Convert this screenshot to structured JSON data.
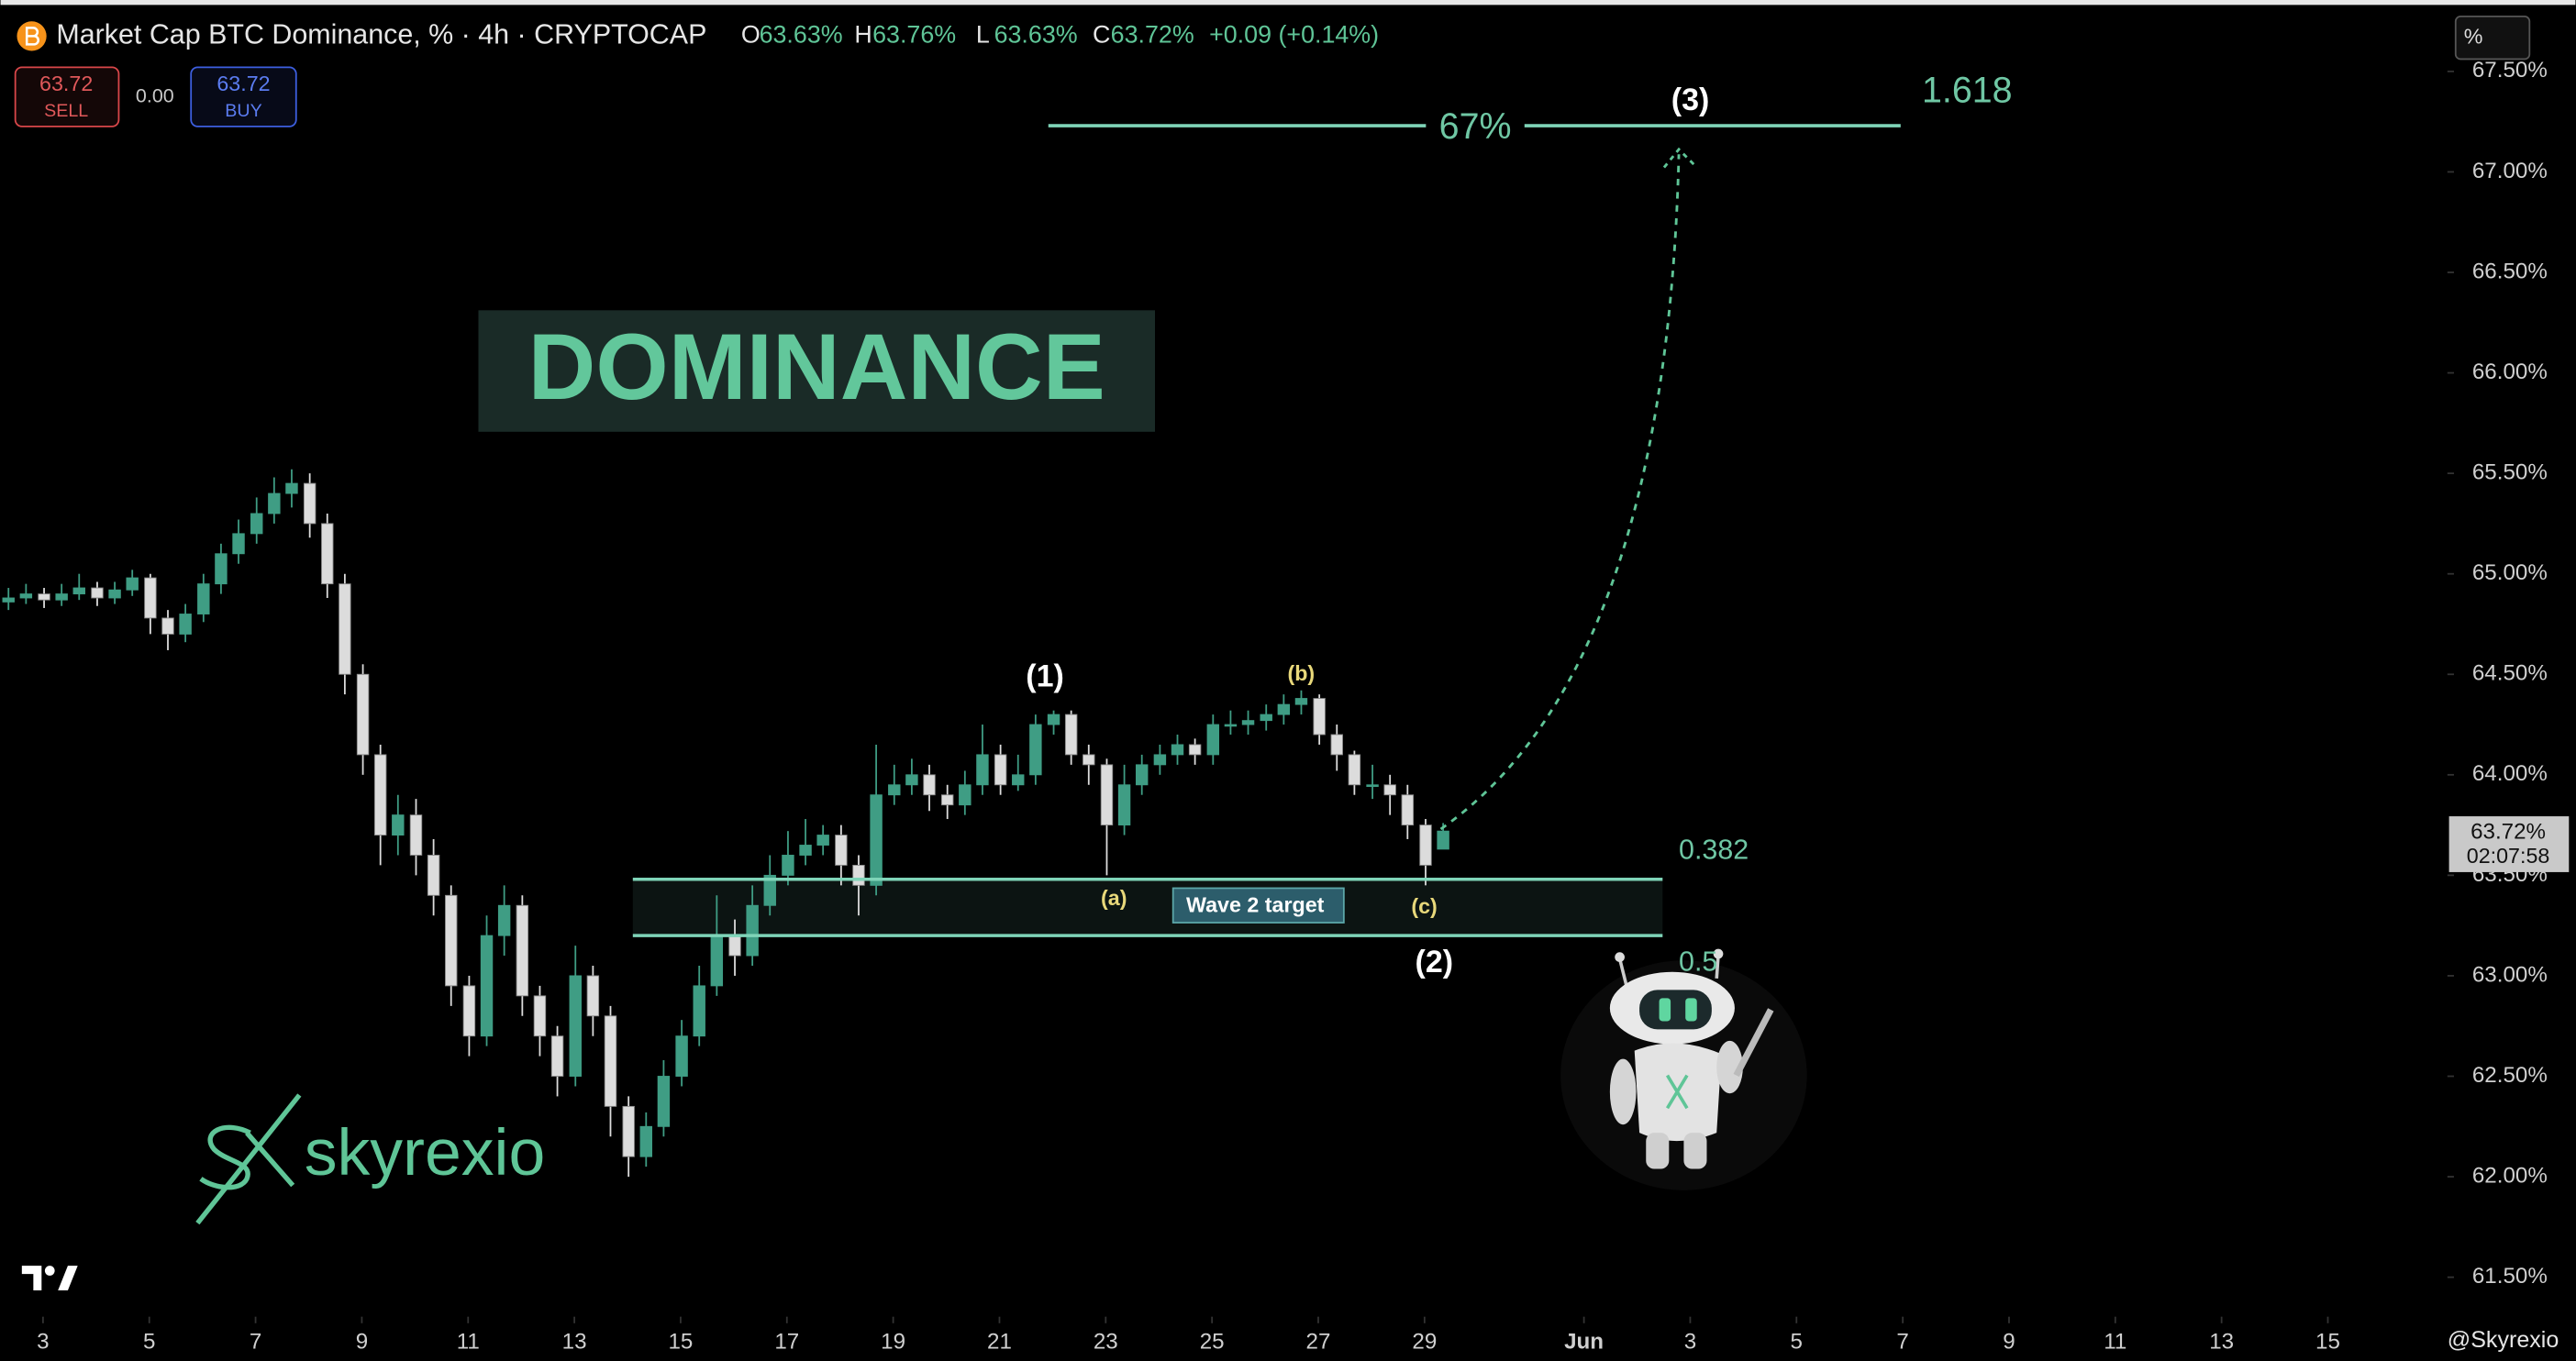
{
  "chart_data": {
    "type": "candlestick",
    "title": "Market Cap BTC Dominance, % · 4h · CRYPTOCAP",
    "ohlc_header": [
      {
        "key": "O",
        "value": "63.63%"
      },
      {
        "key": "H",
        "value": "63.76%"
      },
      {
        "key": "L",
        "value": "63.63%"
      },
      {
        "key": "C",
        "value": "63.72%"
      }
    ],
    "change": "+0.09 (+0.14%)",
    "x": [
      2.35,
      2.68,
      3.02,
      3.35,
      3.68,
      4.02,
      4.35,
      4.68,
      5.02,
      5.35,
      5.68,
      6.02,
      6.35,
      6.68,
      7.02,
      7.35,
      7.68,
      8.02,
      8.35,
      8.68,
      9.02,
      9.35,
      9.68,
      10.02,
      10.35,
      10.68,
      11.02,
      11.35,
      11.68,
      12.02,
      12.35,
      12.68,
      13.02,
      13.35,
      13.68,
      14.02,
      14.35,
      14.68,
      15.02,
      15.35,
      15.68,
      16.02,
      16.35,
      16.68,
      17.02,
      17.35,
      17.68,
      18.02,
      18.35,
      18.68,
      19.02,
      19.35,
      19.68,
      20.02,
      20.35,
      20.68,
      21.02,
      21.35,
      21.68,
      22.02,
      22.35,
      22.68,
      23.02,
      23.35,
      23.68,
      24.02,
      24.35,
      24.68,
      25.02,
      25.35,
      25.68,
      26.02,
      26.35,
      26.68,
      27.02,
      27.35,
      27.68,
      28.02,
      28.35,
      28.68,
      29.02,
      29.35
    ],
    "open": [
      64.86,
      64.88,
      64.9,
      64.87,
      64.9,
      64.93,
      64.88,
      64.92,
      64.98,
      64.78,
      64.7,
      64.8,
      64.95,
      65.1,
      65.2,
      65.3,
      65.4,
      65.45,
      65.25,
      64.95,
      64.5,
      64.1,
      63.7,
      63.8,
      63.6,
      63.4,
      62.95,
      62.7,
      63.2,
      63.35,
      62.9,
      62.7,
      62.5,
      63.0,
      62.8,
      62.35,
      62.1,
      62.25,
      62.5,
      62.7,
      62.95,
      63.2,
      63.1,
      63.35,
      63.5,
      63.6,
      63.65,
      63.7,
      63.55,
      63.45,
      63.9,
      63.95,
      64.0,
      63.9,
      63.85,
      63.95,
      64.1,
      63.95,
      64.0,
      64.25,
      64.3,
      64.1,
      64.05,
      63.75,
      63.95,
      64.05,
      64.1,
      64.15,
      64.1,
      64.25,
      64.25,
      64.27,
      64.3,
      64.35,
      64.38,
      64.2,
      64.1,
      63.95,
      63.95,
      63.9,
      63.75,
      63.63
    ],
    "high": [
      64.93,
      64.95,
      64.93,
      64.95,
      65.0,
      64.96,
      64.96,
      65.02,
      65.0,
      64.82,
      64.85,
      65.0,
      65.15,
      65.27,
      65.38,
      65.48,
      65.52,
      65.5,
      65.3,
      65.0,
      64.55,
      64.15,
      63.9,
      63.88,
      63.68,
      63.45,
      63.0,
      63.3,
      63.45,
      63.4,
      62.95,
      62.75,
      63.15,
      63.05,
      62.85,
      62.4,
      62.32,
      62.58,
      62.78,
      63.05,
      63.4,
      63.28,
      63.45,
      63.6,
      63.72,
      63.78,
      63.75,
      63.75,
      63.6,
      64.15,
      64.05,
      64.08,
      64.05,
      63.95,
      64.02,
      64.25,
      64.15,
      64.1,
      64.3,
      64.32,
      64.32,
      64.15,
      64.08,
      64.05,
      64.1,
      64.15,
      64.2,
      64.18,
      64.3,
      64.32,
      64.32,
      64.35,
      64.4,
      64.42,
      64.4,
      64.25,
      64.12,
      64.05,
      64.0,
      63.95,
      63.78,
      63.76
    ],
    "low": [
      64.82,
      64.85,
      64.83,
      64.84,
      64.87,
      64.84,
      64.85,
      64.89,
      64.7,
      64.62,
      64.66,
      64.76,
      64.9,
      65.05,
      65.15,
      65.25,
      65.33,
      65.18,
      64.88,
      64.4,
      64.0,
      63.55,
      63.6,
      63.5,
      63.3,
      62.85,
      62.6,
      62.65,
      63.1,
      62.8,
      62.6,
      62.4,
      62.45,
      62.7,
      62.2,
      62.0,
      62.05,
      62.2,
      62.45,
      62.65,
      62.9,
      63.0,
      63.05,
      63.3,
      63.45,
      63.55,
      63.6,
      63.45,
      63.3,
      63.4,
      63.85,
      63.9,
      63.82,
      63.78,
      63.8,
      63.9,
      63.9,
      63.92,
      63.95,
      64.2,
      64.05,
      63.95,
      63.5,
      63.7,
      63.9,
      64.0,
      64.05,
      64.05,
      64.05,
      64.2,
      64.2,
      64.22,
      64.25,
      64.3,
      64.15,
      64.02,
      63.9,
      63.88,
      63.8,
      63.68,
      63.45,
      63.63
    ],
    "close": [
      64.88,
      64.9,
      64.87,
      64.9,
      64.93,
      64.88,
      64.92,
      64.98,
      64.78,
      64.7,
      64.8,
      64.95,
      65.1,
      65.2,
      65.3,
      65.4,
      65.45,
      65.25,
      64.95,
      64.5,
      64.1,
      63.7,
      63.8,
      63.6,
      63.4,
      62.95,
      62.7,
      63.2,
      63.35,
      62.9,
      62.7,
      62.5,
      63.0,
      62.8,
      62.35,
      62.1,
      62.25,
      62.5,
      62.7,
      62.95,
      63.2,
      63.1,
      63.35,
      63.5,
      63.6,
      63.65,
      63.7,
      63.55,
      63.45,
      63.9,
      63.95,
      64.0,
      63.9,
      63.85,
      63.95,
      64.1,
      63.95,
      64.0,
      64.25,
      64.3,
      64.1,
      64.05,
      63.75,
      63.95,
      64.05,
      64.1,
      64.15,
      64.1,
      64.25,
      64.25,
      64.27,
      64.3,
      64.35,
      64.38,
      64.2,
      64.1,
      63.95,
      63.95,
      63.9,
      63.75,
      63.55,
      63.72
    ],
    "up_color": "#3f9d84",
    "down_color": "#dcdcdc",
    "xlim": [
      2.2,
      48.25
    ],
    "xticks": [
      3,
      5,
      7,
      9,
      11,
      13,
      15,
      17,
      19,
      21,
      23,
      25,
      27,
      29,
      {
        "value": 32,
        "label": "Jun"
      },
      {
        "value": 34,
        "label": "3"
      },
      {
        "value": 36,
        "label": "5"
      },
      {
        "value": 38,
        "label": "7"
      },
      {
        "value": 40,
        "label": "9"
      },
      {
        "value": 42,
        "label": "11"
      },
      {
        "value": 44,
        "label": "13"
      },
      {
        "value": 46,
        "label": "15"
      }
    ],
    "ylim": [
      61.32,
      67.79
    ],
    "yticks": [
      {
        "value": 61.5,
        "label": "61.50%"
      },
      {
        "value": 62,
        "label": "62.00%"
      },
      {
        "value": 62.5,
        "label": "62.50%"
      },
      {
        "value": 63,
        "label": "63.00%"
      },
      {
        "value": 63.5,
        "label": "63.50%"
      },
      {
        "value": 64,
        "label": "64.00%"
      },
      {
        "value": 64.5,
        "label": "64.50%"
      },
      {
        "value": 65,
        "label": "65.00%"
      },
      {
        "value": 65.5,
        "label": "65.50%"
      },
      {
        "value": 66,
        "label": "66.00%"
      },
      {
        "value": 66.5,
        "label": "66.50%"
      },
      {
        "value": 67,
        "label": "67.00%"
      },
      {
        "value": 67.5,
        "label": "67.50%"
      }
    ],
    "grid": false,
    "levels": [
      {
        "label": "0.382",
        "value": 63.48,
        "x": [
          14.1,
          33.48
        ]
      },
      {
        "label": "0.5",
        "value": 63.2,
        "x": [
          14.1,
          33.48
        ]
      },
      {
        "label": "1.618",
        "value": 67.23,
        "x": [
          21.92,
          37.96
        ],
        "text": "67%"
      }
    ],
    "zone_label": "Wave 2 target",
    "waves": [
      "(1)",
      "(2)",
      "(3)",
      "(a)",
      "(b)",
      "(c)"
    ],
    "banner": "DOMINANCE",
    "last_price": {
      "value": 63.72,
      "label": "63.72%",
      "countdown": "02:07:58"
    }
  },
  "trade_panel": {
    "sell_price": "63.72",
    "sell": "SELL",
    "spread": "0.00",
    "buy_price": "63.72",
    "buy": "BUY"
  },
  "scale_button": "%",
  "brand": "skyrexio",
  "watermark": "@Skyrexio"
}
